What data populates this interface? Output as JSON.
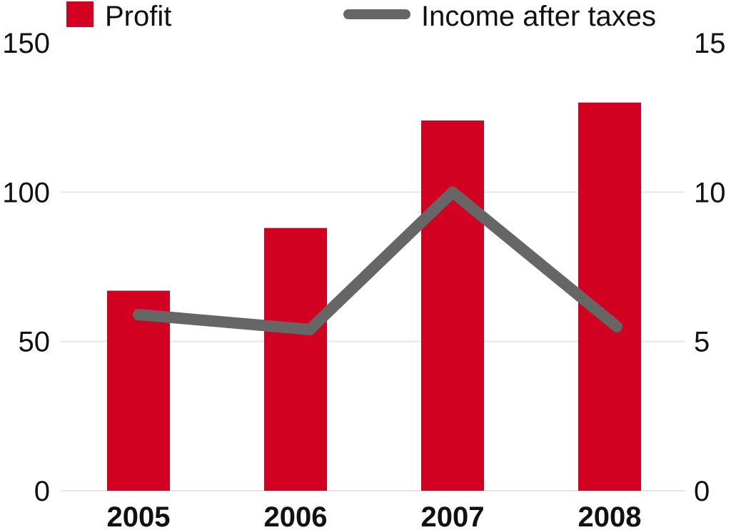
{
  "chart_data": {
    "type": "bar",
    "categories": [
      "2005",
      "2006",
      "2007",
      "2008"
    ],
    "series": [
      {
        "name": "Profit",
        "kind": "bar",
        "axis": "left",
        "color": "#d20021",
        "values": [
          67,
          88,
          124,
          130
        ]
      },
      {
        "name": "Income after taxes",
        "kind": "line",
        "axis": "right",
        "color": "#666666",
        "values": [
          5.9,
          5.4,
          10,
          5.5
        ]
      }
    ],
    "left_axis": {
      "ylim": [
        0,
        150
      ],
      "ticks": [
        "0",
        "50",
        "100",
        "150"
      ]
    },
    "right_axis": {
      "ylim": [
        0,
        15
      ],
      "ticks": [
        "0",
        "5",
        "10",
        "15"
      ]
    },
    "legend": {
      "placement": "top",
      "bar_label": "Profit",
      "line_label": "Income after taxes"
    },
    "grid": true
  }
}
